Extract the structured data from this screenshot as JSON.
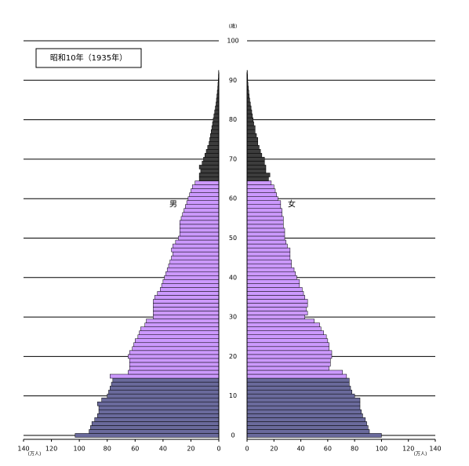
{
  "chart_data": {
    "type": "pyramid",
    "title": "昭和10年（1935年）",
    "x_unit": "(万人)",
    "y_unit": "(歳)",
    "ages": [
      0,
      1,
      2,
      3,
      4,
      5,
      6,
      7,
      8,
      9,
      10,
      11,
      12,
      13,
      14,
      15,
      16,
      17,
      18,
      19,
      20,
      21,
      22,
      23,
      24,
      25,
      26,
      27,
      28,
      29,
      30,
      31,
      32,
      33,
      34,
      35,
      36,
      37,
      38,
      39,
      40,
      41,
      42,
      43,
      44,
      45,
      46,
      47,
      48,
      49,
      50,
      51,
      52,
      53,
      54,
      55,
      56,
      57,
      58,
      59,
      60,
      61,
      62,
      63,
      64,
      65,
      66,
      67,
      68,
      69,
      70,
      71,
      72,
      73,
      74,
      75,
      76,
      77,
      78,
      79,
      80,
      81,
      82,
      83,
      84,
      85,
      86,
      87,
      88,
      89,
      90,
      91,
      92
    ],
    "series": [
      {
        "name": "男",
        "values": [
          103,
          93,
          92,
          91,
          89,
          87,
          86,
          86,
          87,
          84,
          80,
          79,
          78,
          77,
          76,
          78,
          65,
          64,
          64,
          64,
          65,
          64,
          62,
          61,
          60,
          58,
          57,
          56,
          53,
          52,
          47,
          47,
          47,
          47,
          47,
          46,
          44,
          42,
          41,
          40,
          39,
          38,
          37,
          36,
          35,
          34,
          33,
          34,
          33,
          31,
          29,
          28,
          28,
          28,
          28,
          27,
          26,
          25,
          24,
          23,
          22,
          21,
          20,
          19,
          17,
          14,
          14,
          13,
          14,
          12,
          11,
          10,
          9,
          8,
          7,
          6.5,
          6,
          5.5,
          5,
          4.5,
          4,
          3.5,
          3,
          2.5,
          2,
          1.7,
          1.4,
          1.1,
          0.8,
          0.6,
          0.4,
          0.3,
          0.2
        ]
      },
      {
        "name": "女",
        "values": [
          100,
          91,
          90,
          89,
          88,
          86,
          85,
          84,
          84,
          84,
          80,
          78,
          77,
          76,
          76,
          74,
          71,
          61,
          62,
          62,
          63,
          63,
          61,
          61,
          60,
          59,
          57,
          55,
          54,
          50,
          43,
          45,
          44,
          45,
          45,
          43,
          42,
          41,
          39,
          39,
          37,
          36,
          35,
          33,
          33,
          32,
          32,
          32,
          30,
          29,
          28,
          28,
          28,
          27,
          27,
          27,
          26,
          26,
          25,
          25,
          23,
          22,
          21,
          20,
          18,
          16,
          17,
          14,
          14,
          13,
          13,
          11,
          10,
          9,
          8,
          8,
          7,
          6,
          6,
          5,
          4.5,
          4,
          3.5,
          3,
          2.5,
          2,
          1.6,
          1.3,
          1,
          0.7,
          0.5,
          0.4,
          0.3
        ]
      }
    ],
    "color_bands": [
      {
        "max": 14,
        "color": "#6a6a9c"
      },
      {
        "max": 64,
        "color": "#cc99ff"
      },
      {
        "max": 200,
        "color": "#3c3c3c"
      }
    ],
    "xlim": [
      0,
      140
    ],
    "xticks": [
      0,
      20,
      40,
      60,
      80,
      100,
      120,
      140
    ],
    "ylim": [
      -1,
      100
    ],
    "yticks": [
      0,
      10,
      20,
      30,
      40,
      50,
      60,
      70,
      80,
      90,
      100
    ],
    "grid": true
  }
}
